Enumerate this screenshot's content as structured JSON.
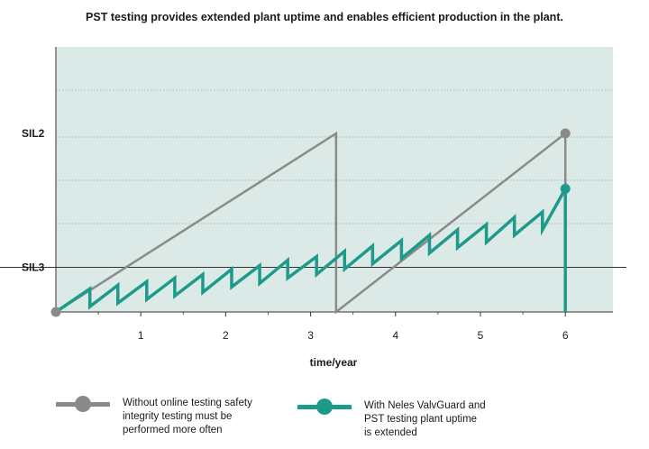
{
  "chart_data": {
    "type": "line",
    "title": "PST testing provides extended plant uptime and enables efficient  production in the plant.",
    "xlabel": "time/year",
    "ylabel": "",
    "xlim": [
      -1,
      6.5
    ],
    "ylim": [
      0,
      2.0
    ],
    "x_ticks": [
      1,
      2,
      3,
      4,
      5,
      6
    ],
    "y_ticks": [
      {
        "label": "SIL2",
        "value": 1.0
      },
      {
        "label": "SIL3",
        "value": 0.25
      }
    ],
    "grid": "horizontal-dotted",
    "series": [
      {
        "name": "Without online testing safety integrity testing must be performed more often",
        "color": "#8a8a8a",
        "x": [
          0,
          3.3,
          3.3,
          6.0,
          6.0
        ],
        "y": [
          0,
          1.0,
          0,
          1.0,
          0
        ]
      },
      {
        "name": "With Neles ValvGuard and PST testing plant uptime is extended",
        "color": "#1e9a8a",
        "x": [
          0,
          0.4,
          0.4,
          0.73,
          0.73,
          1.07,
          1.07,
          1.4,
          1.4,
          1.73,
          1.73,
          2.07,
          2.07,
          2.4,
          2.4,
          2.73,
          2.73,
          3.07,
          3.07,
          3.4,
          3.4,
          3.73,
          3.73,
          4.07,
          4.07,
          4.4,
          4.4,
          4.73,
          4.73,
          5.07,
          5.07,
          5.4,
          5.4,
          5.73,
          5.73,
          6.0,
          6.0
        ],
        "y": [
          0,
          0.13,
          0.03,
          0.15,
          0.05,
          0.17,
          0.07,
          0.19,
          0.09,
          0.21,
          0.11,
          0.24,
          0.14,
          0.26,
          0.16,
          0.29,
          0.19,
          0.31,
          0.21,
          0.34,
          0.24,
          0.37,
          0.27,
          0.4,
          0.3,
          0.43,
          0.33,
          0.46,
          0.36,
          0.49,
          0.39,
          0.53,
          0.43,
          0.56,
          0.46,
          0.69,
          0
        ]
      }
    ],
    "markers": [
      {
        "series": 0,
        "x": 0,
        "y": 0
      },
      {
        "series": 0,
        "x": 6.0,
        "y": 1.0
      },
      {
        "series": 1,
        "x": 6.0,
        "y": 0.69
      }
    ],
    "colors": {
      "plot_background": "#dceae7",
      "axis": "#333333",
      "grid": "#9aa8a6"
    }
  },
  "legend": [
    {
      "label": "Without online testing safety\nintegrity testing must be\nperformed more often",
      "color": "#8a8a8a"
    },
    {
      "label": "With Neles ValvGuard and\nPST testing plant uptime\nis extended",
      "color": "#1e9a8a"
    }
  ]
}
